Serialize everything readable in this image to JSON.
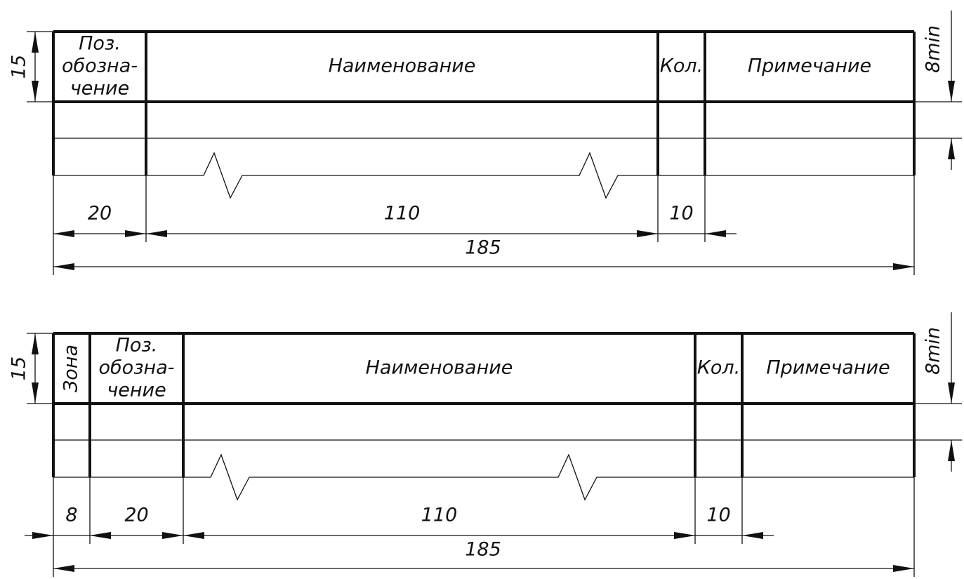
{
  "drawings": [
    {
      "columns": [
        [
          "Поз.",
          "обозна-",
          "чение"
        ],
        [
          "Наименование"
        ],
        [
          "Кол."
        ],
        [
          "Примечание"
        ]
      ],
      "height": "15",
      "row_height": "8min",
      "widths": [
        "20",
        "110",
        "10"
      ],
      "total": "185"
    },
    {
      "columns": [
        [
          "Зона"
        ],
        [
          "Поз.",
          "обозна-",
          "чение"
        ],
        [
          "Наименование"
        ],
        [
          "Кол."
        ],
        [
          "Примечание"
        ]
      ],
      "height": "15",
      "row_height": "8min",
      "widths": [
        "8",
        "20",
        "110",
        "10"
      ],
      "total": "185"
    }
  ]
}
